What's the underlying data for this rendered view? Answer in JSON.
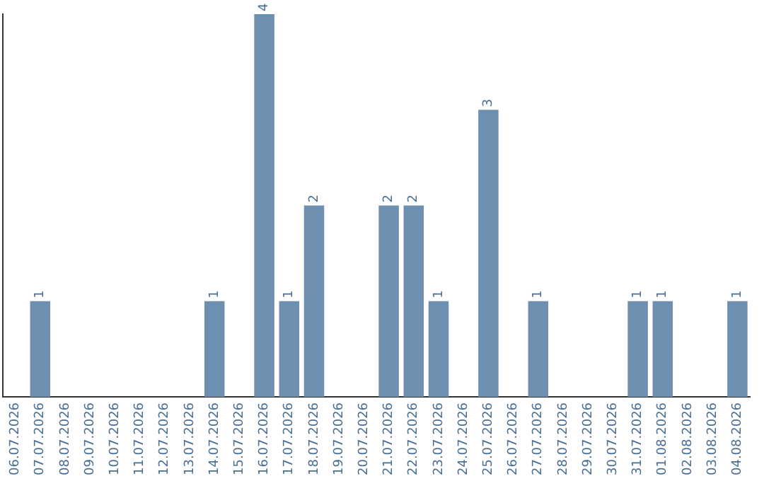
{
  "chart_data": {
    "type": "bar",
    "categories": [
      "06.07.2026",
      "07.07.2026",
      "08.07.2026",
      "09.07.2026",
      "10.07.2026",
      "11.07.2026",
      "12.07.2026",
      "13.07.2026",
      "14.07.2026",
      "15.07.2026",
      "16.07.2026",
      "17.07.2026",
      "18.07.2026",
      "19.07.2026",
      "20.07.2026",
      "21.07.2026",
      "22.07.2026",
      "23.07.2026",
      "24.07.2026",
      "25.07.2026",
      "26.07.2026",
      "27.07.2026",
      "28.07.2026",
      "29.07.2026",
      "30.07.2026",
      "31.07.2026",
      "01.08.2026",
      "02.08.2026",
      "03.08.2026",
      "04.08.2026"
    ],
    "values": [
      0,
      1,
      0,
      0,
      0,
      0,
      0,
      0,
      1,
      0,
      4,
      1,
      2,
      0,
      0,
      2,
      2,
      1,
      0,
      3,
      0,
      1,
      0,
      0,
      0,
      1,
      1,
      0,
      0,
      1
    ],
    "value_labels": [
      null,
      "1",
      null,
      null,
      null,
      null,
      null,
      null,
      "1",
      null,
      "4",
      "1",
      "2",
      null,
      null,
      "2",
      "2",
      "1",
      null,
      "3",
      null,
      "1",
      null,
      null,
      null,
      "1",
      "1",
      null,
      null,
      "1"
    ],
    "color": "#6d8fb0",
    "grid": false,
    "legend": false,
    "tick_labels": "x"
  }
}
